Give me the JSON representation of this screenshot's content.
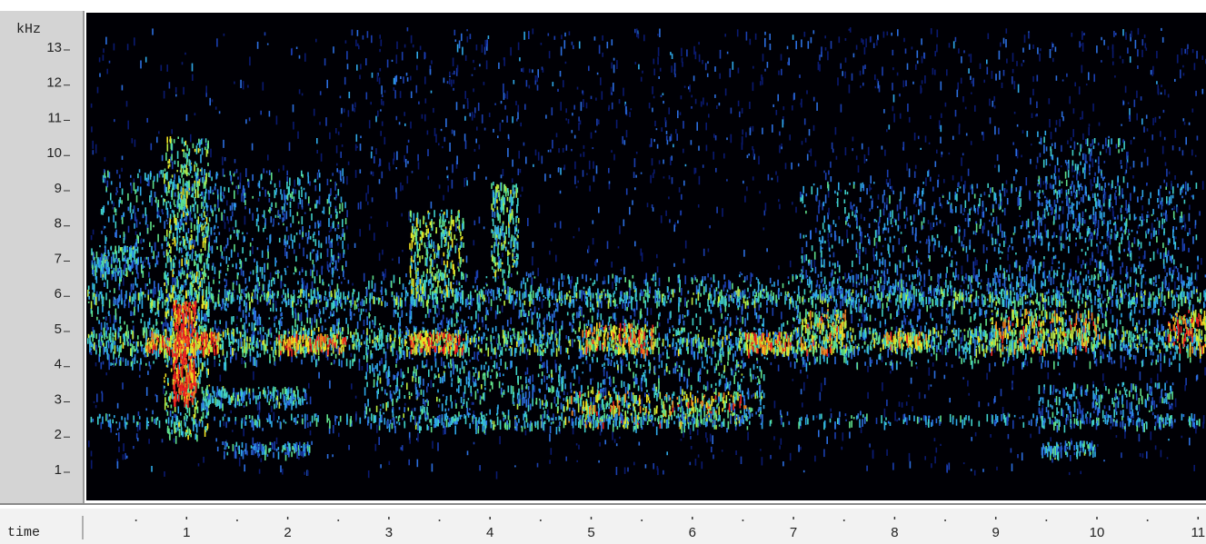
{
  "y_axis": {
    "unit": "kHz",
    "ticks": [
      1,
      2,
      3,
      4,
      5,
      6,
      7,
      8,
      9,
      10,
      11,
      12,
      13
    ]
  },
  "x_axis": {
    "label": "time",
    "ticks": [
      1,
      2,
      3,
      4,
      5,
      6,
      7,
      8,
      9,
      10,
      11
    ]
  }
}
